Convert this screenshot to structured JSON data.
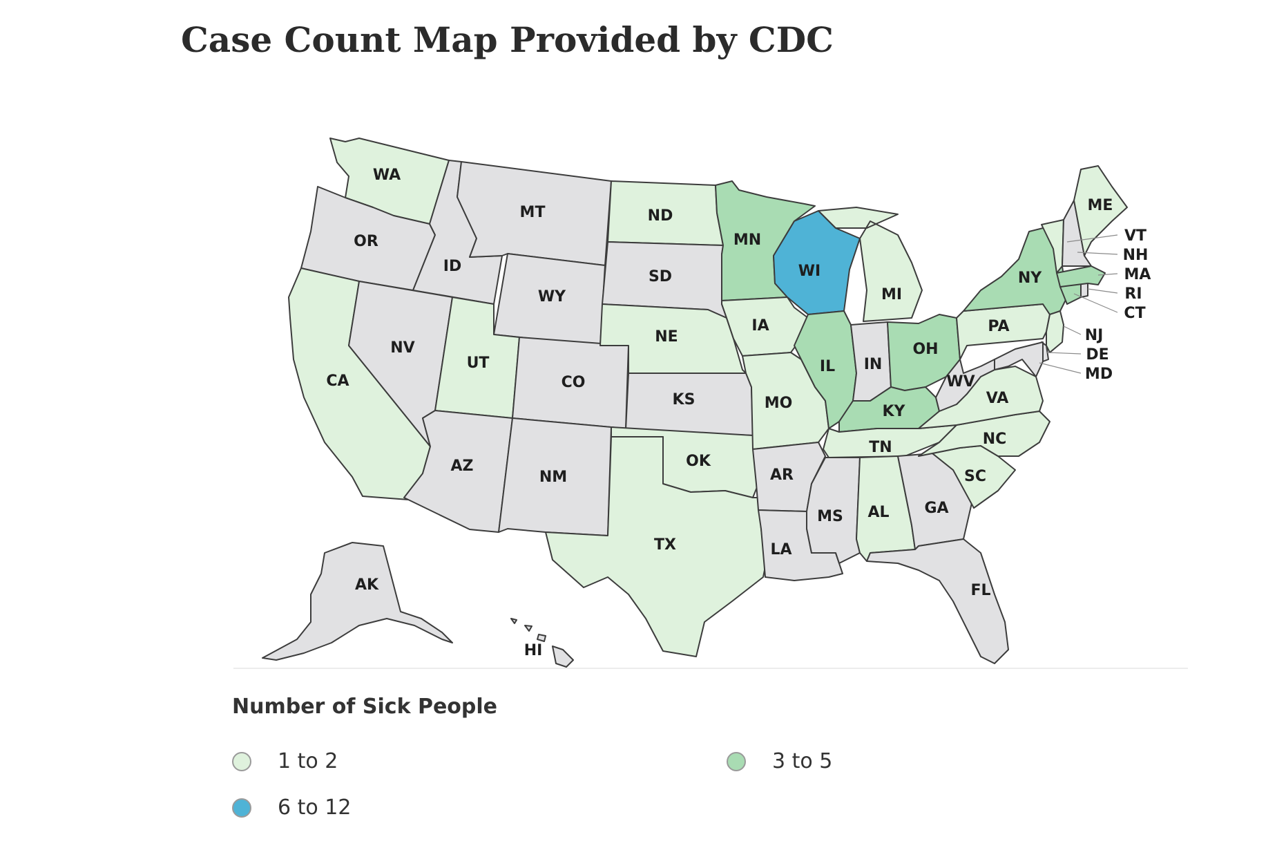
{
  "title": "Case Count Map Provided by CDC",
  "colors": {
    "none": "#e1e1e3",
    "1_to_2": "#dff2dd",
    "3_to_5": "#a9dcb3",
    "6_to_12": "#4fb3d6",
    "border": "#3c3c3c"
  },
  "legend": {
    "title": "Number of Sick People",
    "items": [
      {
        "label": "1 to 2",
        "color": "#dff2dd"
      },
      {
        "label": "3 to 5",
        "color": "#a9dcb3"
      },
      {
        "label": "6 to 12",
        "color": "#4fb3d6"
      }
    ]
  },
  "states": {
    "WA": {
      "label": "WA",
      "bin": "1_to_2"
    },
    "OR": {
      "label": "OR",
      "bin": "none"
    },
    "CA": {
      "label": "CA",
      "bin": "1_to_2"
    },
    "ID": {
      "label": "ID",
      "bin": "none"
    },
    "NV": {
      "label": "NV",
      "bin": "none"
    },
    "MT": {
      "label": "MT",
      "bin": "none"
    },
    "WY": {
      "label": "WY",
      "bin": "none"
    },
    "UT": {
      "label": "UT",
      "bin": "1_to_2"
    },
    "AZ": {
      "label": "AZ",
      "bin": "none"
    },
    "CO": {
      "label": "CO",
      "bin": "none"
    },
    "NM": {
      "label": "NM",
      "bin": "none"
    },
    "ND": {
      "label": "ND",
      "bin": "1_to_2"
    },
    "SD": {
      "label": "SD",
      "bin": "none"
    },
    "NE": {
      "label": "NE",
      "bin": "1_to_2"
    },
    "KS": {
      "label": "KS",
      "bin": "none"
    },
    "OK": {
      "label": "OK",
      "bin": "1_to_2"
    },
    "TX": {
      "label": "TX",
      "bin": "1_to_2"
    },
    "MN": {
      "label": "MN",
      "bin": "3_to_5"
    },
    "IA": {
      "label": "IA",
      "bin": "1_to_2"
    },
    "MO": {
      "label": "MO",
      "bin": "1_to_2"
    },
    "AR": {
      "label": "AR",
      "bin": "none"
    },
    "LA": {
      "label": "LA",
      "bin": "none"
    },
    "WI": {
      "label": "WI",
      "bin": "6_to_12"
    },
    "IL": {
      "label": "IL",
      "bin": "3_to_5"
    },
    "MI": {
      "label": "MI",
      "bin": "1_to_2"
    },
    "IN": {
      "label": "IN",
      "bin": "none"
    },
    "OH": {
      "label": "OH",
      "bin": "3_to_5"
    },
    "KY": {
      "label": "KY",
      "bin": "3_to_5"
    },
    "TN": {
      "label": "TN",
      "bin": "1_to_2"
    },
    "MS": {
      "label": "MS",
      "bin": "none"
    },
    "AL": {
      "label": "AL",
      "bin": "1_to_2"
    },
    "GA": {
      "label": "GA",
      "bin": "none"
    },
    "FL": {
      "label": "FL",
      "bin": "none"
    },
    "SC": {
      "label": "SC",
      "bin": "1_to_2"
    },
    "NC": {
      "label": "NC",
      "bin": "1_to_2"
    },
    "VA": {
      "label": "VA",
      "bin": "1_to_2"
    },
    "WV": {
      "label": "WV",
      "bin": "none"
    },
    "PA": {
      "label": "PA",
      "bin": "1_to_2"
    },
    "NY": {
      "label": "NY",
      "bin": "3_to_5"
    },
    "NJ": {
      "label": "NJ",
      "bin": "1_to_2"
    },
    "DE": {
      "label": "DE",
      "bin": "none"
    },
    "MD": {
      "label": "MD",
      "bin": "none"
    },
    "CT": {
      "label": "CT",
      "bin": "3_to_5"
    },
    "RI": {
      "label": "RI",
      "bin": "none"
    },
    "MA": {
      "label": "MA",
      "bin": "3_to_5"
    },
    "VT": {
      "label": "VT",
      "bin": "1_to_2"
    },
    "NH": {
      "label": "NH",
      "bin": "none"
    },
    "ME": {
      "label": "ME",
      "bin": "1_to_2"
    },
    "AK": {
      "label": "AK",
      "bin": "none"
    },
    "HI": {
      "label": "HI",
      "bin": "none"
    }
  }
}
